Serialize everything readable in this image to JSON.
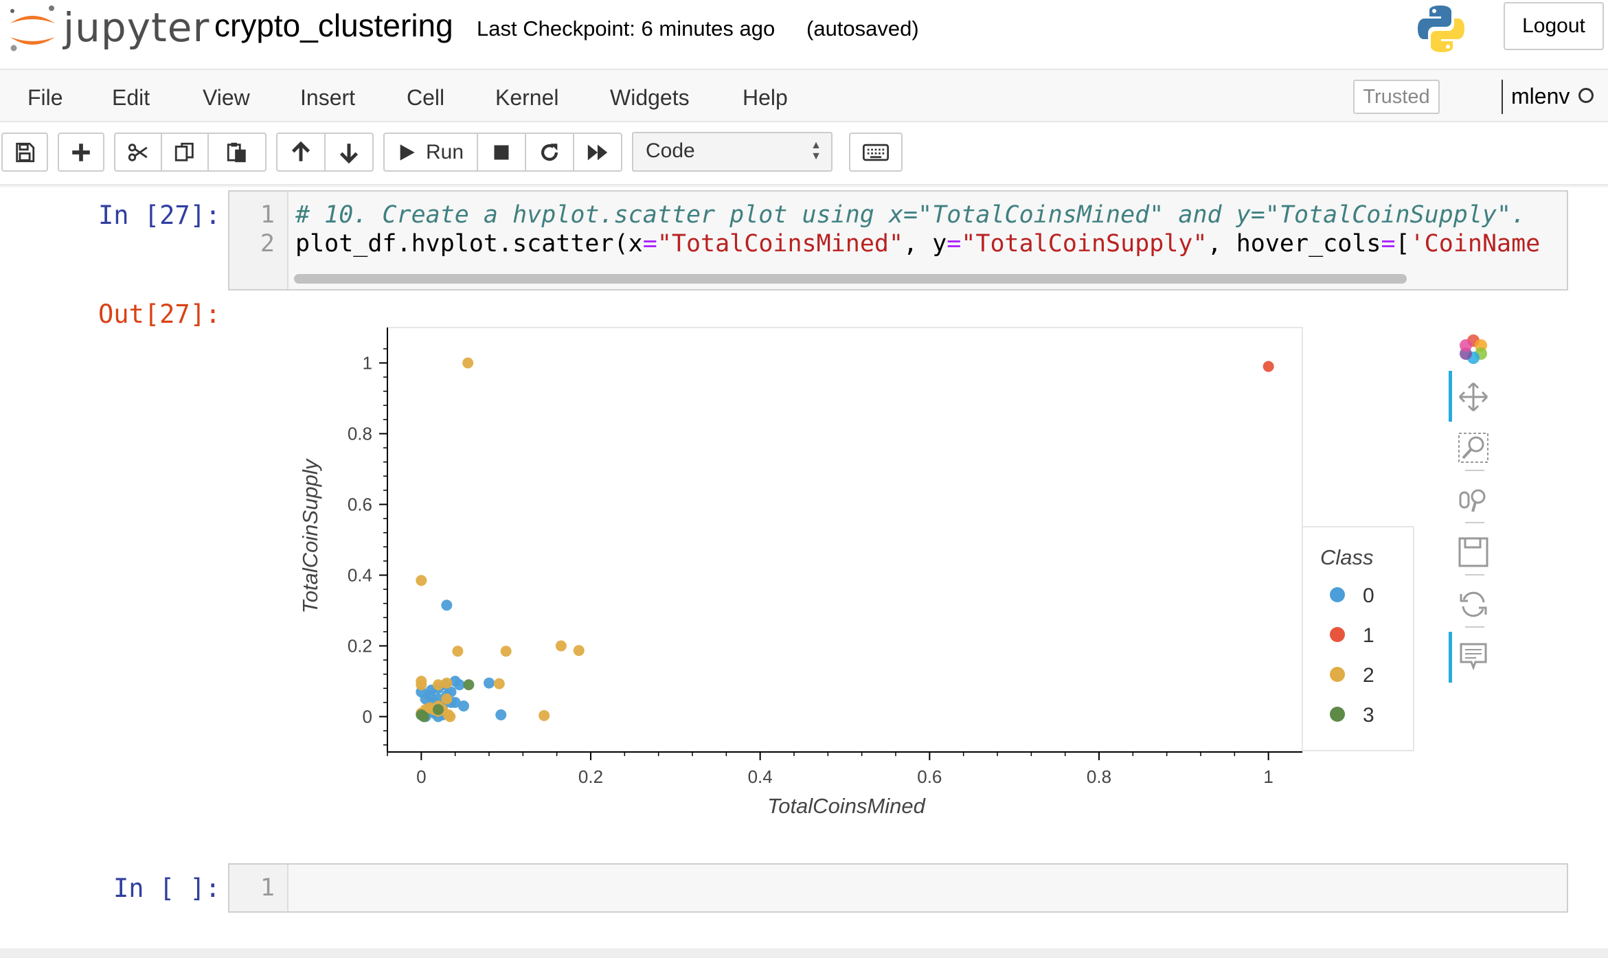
{
  "header": {
    "logo_text": "jupyter",
    "notebook_title": "crypto_clustering",
    "checkpoint": "Last Checkpoint: 6 minutes ago",
    "autosave_status": "(autosaved)",
    "logout_label": "Logout"
  },
  "menu": {
    "items": [
      "File",
      "Edit",
      "View",
      "Insert",
      "Cell",
      "Kernel",
      "Widgets",
      "Help"
    ],
    "trusted_label": "Trusted",
    "kernel_name": "mlenv"
  },
  "toolbar": {
    "run_label": "Run",
    "cell_type": "Code",
    "icons": [
      "save-icon",
      "plus-icon",
      "scissors-icon",
      "copy-icon",
      "paste-icon",
      "arrow-up-icon",
      "arrow-down-icon",
      "play-icon",
      "stop-icon",
      "restart-icon",
      "fast-forward-icon",
      "keyboard-icon"
    ]
  },
  "cells": {
    "cell1": {
      "prompt_in": "In [27]:",
      "prompt_out": "Out[27]:",
      "lines": [
        {
          "no": "1",
          "comment": "# 10. Create a hvplot.scatter plot using x=\"TotalCoinsMined\" and y=\"TotalCoinSupply\"."
        },
        {
          "no": "2",
          "p1": "plot_df.hvplot.scatter(x",
          "op1": "=",
          "s1": "\"TotalCoinsMined\"",
          "p2": ", y",
          "op2": "=",
          "s2": "\"TotalCoinSupply\"",
          "p3": ", hover_cols",
          "op3": "=",
          "p4": "[",
          "s3": "'CoinName"
        }
      ]
    },
    "cell2": {
      "prompt_in": "In [ ]:",
      "line_no": "1"
    }
  },
  "plot_tools": [
    "bokeh-logo-icon",
    "pan-icon",
    "box-zoom-icon",
    "wheel-zoom-icon",
    "save-icon",
    "reset-icon",
    "hover-icon"
  ],
  "chart_data": {
    "type": "scatter",
    "xlabel": "TotalCoinsMined",
    "ylabel": "TotalCoinSupply",
    "xlim": [
      -0.04,
      1.04
    ],
    "ylim": [
      -0.1,
      1.1
    ],
    "xticks": [
      0,
      0.2,
      0.4,
      0.6,
      0.8,
      1
    ],
    "xtick_labels": [
      "0",
      "0.2",
      "0.4",
      "0.6",
      "0.8",
      "1"
    ],
    "yticks": [
      0,
      0.2,
      0.4,
      0.6,
      0.8,
      1
    ],
    "ytick_labels": [
      "0",
      "0.2",
      "0.4",
      "0.6",
      "0.8",
      "1"
    ],
    "grid": false,
    "legend_title": "Class",
    "legend_position": "right",
    "series": [
      {
        "name": "0",
        "color": "#4c9ed8",
        "points": [
          [
            0.0,
            0.07
          ],
          [
            0.005,
            0.05
          ],
          [
            0.01,
            0.06
          ],
          [
            0.015,
            0.04
          ],
          [
            0.02,
            0.05
          ],
          [
            0.025,
            0.03
          ],
          [
            0.03,
            0.06
          ],
          [
            0.035,
            0.04
          ],
          [
            0.04,
            0.1
          ],
          [
            0.045,
            0.09
          ],
          [
            0.05,
            0.03
          ],
          [
            0.03,
            0.315
          ],
          [
            0.08,
            0.095
          ],
          [
            0.094,
            0.005
          ],
          [
            0.01,
            0.02
          ],
          [
            0.015,
            0.01
          ],
          [
            0.02,
            0.0
          ],
          [
            0.025,
            0.005
          ],
          [
            0.005,
            0.0
          ],
          [
            0.04,
            0.04
          ],
          [
            0.028,
            0.09
          ],
          [
            0.012,
            0.075
          ],
          [
            0.02,
            0.08
          ],
          [
            0.035,
            0.07
          ]
        ]
      },
      {
        "name": "1",
        "color": "#e8553c",
        "points": [
          [
            1.0,
            0.99
          ]
        ]
      },
      {
        "name": "2",
        "color": "#e0ac45",
        "points": [
          [
            0.055,
            1.0
          ],
          [
            0.0,
            0.385
          ],
          [
            0.043,
            0.185
          ],
          [
            0.1,
            0.185
          ],
          [
            0.165,
            0.2
          ],
          [
            0.186,
            0.187
          ],
          [
            0.0,
            0.1
          ],
          [
            0.02,
            0.09
          ],
          [
            0.03,
            0.095
          ],
          [
            0.092,
            0.093
          ],
          [
            0.145,
            0.003
          ],
          [
            0.0,
            0.01
          ],
          [
            0.005,
            0.02
          ],
          [
            0.01,
            0.025
          ],
          [
            0.015,
            0.02
          ],
          [
            0.02,
            0.03
          ],
          [
            0.025,
            0.02
          ],
          [
            0.032,
            0.005
          ],
          [
            0.034,
            0.0
          ],
          [
            0.0,
            0.09
          ],
          [
            0.03,
            0.05
          ],
          [
            0.02,
            0.015
          ]
        ]
      },
      {
        "name": "3",
        "color": "#5e8a48",
        "points": [
          [
            0.056,
            0.09
          ],
          [
            0.0,
            0.005
          ],
          [
            0.003,
            0.0
          ],
          [
            0.02,
            0.02
          ]
        ]
      }
    ]
  }
}
